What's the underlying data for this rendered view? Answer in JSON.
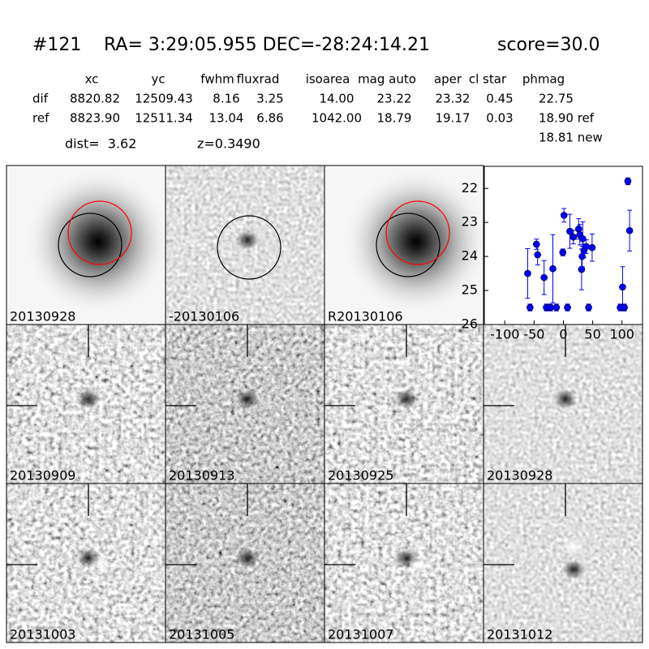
{
  "header": {
    "id": "#121",
    "coords": "RA= 3:29:05.955 DEC=-28:24:14.21",
    "score": "score=30.0"
  },
  "table": {
    "columns": [
      "xc",
      "yc",
      "fwhm",
      "fluxrad",
      "isoarea",
      "mag auto",
      "aper",
      "cl star",
      "phmag"
    ],
    "rows": [
      [
        "dif",
        "8820.82",
        "12509.43",
        "8.16",
        "3.25",
        "14.00",
        "23.22",
        "23.32",
        "0.45",
        "22.75"
      ],
      [
        "ref",
        "8823.90",
        "12511.34",
        "13.04",
        "6.86",
        "1042.00",
        "18.79",
        "19.17",
        "0.03",
        "18.90 ref"
      ]
    ],
    "extra": "18.81 new"
  },
  "dist": "dist=  3.62",
  "z": "z=0.3490",
  "panels": [
    {
      "label": "20130928"
    },
    {
      "label": "-20130106"
    },
    {
      "label": "R20130106"
    },
    {
      "label": "20130909"
    },
    {
      "label": "20130913"
    },
    {
      "label": "20130925"
    },
    {
      "label": "20130928",
      "color": "#ff0000"
    },
    {
      "label": "20131003"
    },
    {
      "label": "20131005"
    },
    {
      "label": "20131007"
    },
    {
      "label": "20131012"
    }
  ],
  "chart_data": {
    "type": "scatter",
    "xlim": [
      -135,
      135
    ],
    "ylim": [
      26,
      21.35
    ],
    "xticks": [
      -100,
      -50,
      0,
      50,
      100
    ],
    "yticks": [
      22,
      23,
      24,
      25,
      26
    ],
    "series": [
      {
        "color": "#0000ff",
        "x": [
          -61,
          -57,
          -46,
          -44,
          -33,
          -29,
          -22,
          -18,
          -12,
          -1,
          1,
          7,
          11,
          17,
          26,
          28,
          31,
          32,
          35,
          39,
          33,
          43,
          49,
          97,
          101,
          104,
          110,
          113
        ],
        "values": [
          24.5,
          25.5,
          23.64,
          23.95,
          24.62,
          25.5,
          25.5,
          24.36,
          25.5,
          23.88,
          22.79,
          25.5,
          23.26,
          23.43,
          23.19,
          23.36,
          24.38,
          24.0,
          23.83,
          23.71,
          23.48,
          25.5,
          23.74,
          25.5,
          24.9,
          25.5,
          21.79,
          23.24
        ],
        "errors": [
          0.73,
          0.1,
          0.15,
          0.3,
          0.5,
          0.1,
          0.1,
          1.0,
          0.1,
          0.1,
          0.2,
          0.1,
          0.5,
          0.2,
          0.3,
          0.3,
          0.6,
          0.3,
          0.2,
          0.2,
          0.5,
          0.1,
          0.4,
          0.1,
          0.6,
          0.1,
          0.1,
          0.6
        ]
      }
    ]
  }
}
